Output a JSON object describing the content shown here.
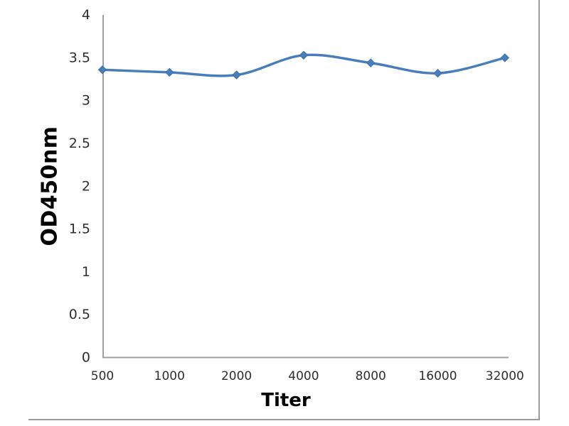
{
  "chart_data": {
    "type": "line",
    "title": "",
    "xlabel": "Titer",
    "ylabel": "OD450nm",
    "categories": [
      "500",
      "1000",
      "2000",
      "4000",
      "8000",
      "16000",
      "32000"
    ],
    "series": [
      {
        "name": "OD450nm",
        "values": [
          3.36,
          3.33,
          3.3,
          3.53,
          3.44,
          3.32,
          3.5
        ]
      }
    ],
    "ylim": [
      0,
      4
    ],
    "ytick_step": 0.5,
    "yticks": [
      "4",
      "3.5",
      "3",
      "2.5",
      "2",
      "1.5",
      "1",
      "0.5",
      "0"
    ],
    "grid": false,
    "legend": false,
    "smooth": true,
    "marker": "diamond",
    "line_color": "#4a7ebb",
    "marker_stroke_color": "#3f6fa8",
    "axis_color": "#9f9f9f",
    "border_color": "#9a9a9a",
    "tick_text_color": "#2e2e2e"
  }
}
